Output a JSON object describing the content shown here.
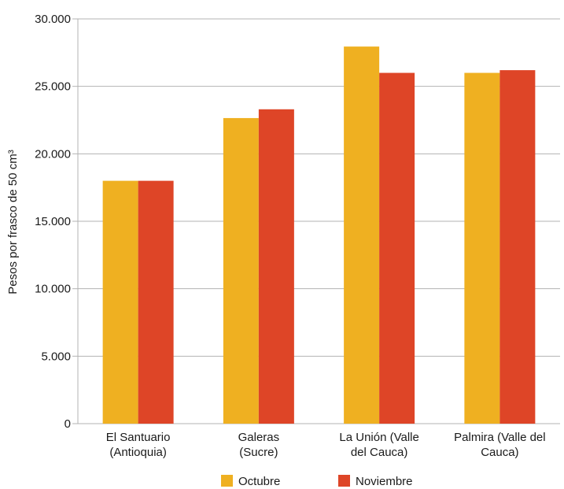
{
  "chart_data": {
    "type": "bar",
    "title": "",
    "xlabel": "",
    "ylabel": "Pesos por frasco de 50 cm³",
    "ylim": [
      0,
      30000
    ],
    "yticks": [
      0,
      5000,
      10000,
      15000,
      20000,
      25000,
      30000
    ],
    "ytick_labels": [
      "0",
      "5.000",
      "10.000",
      "15.000",
      "20.000",
      "25.000",
      "30.000"
    ],
    "categories": [
      [
        "El Santuario",
        "(Antioquia)"
      ],
      [
        "Galeras",
        "(Sucre)"
      ],
      [
        "La Unión (Valle",
        "del Cauca)"
      ],
      [
        "Palmira (Valle del",
        "Cauca)"
      ]
    ],
    "series": [
      {
        "name": "Octubre",
        "color": "#EFB021",
        "values": [
          18000,
          22650,
          27950,
          26000
        ]
      },
      {
        "name": "Noviembre",
        "color": "#DE4527",
        "values": [
          18000,
          23300,
          26000,
          26200
        ]
      }
    ],
    "grid": true,
    "legend_position": "bottom"
  }
}
